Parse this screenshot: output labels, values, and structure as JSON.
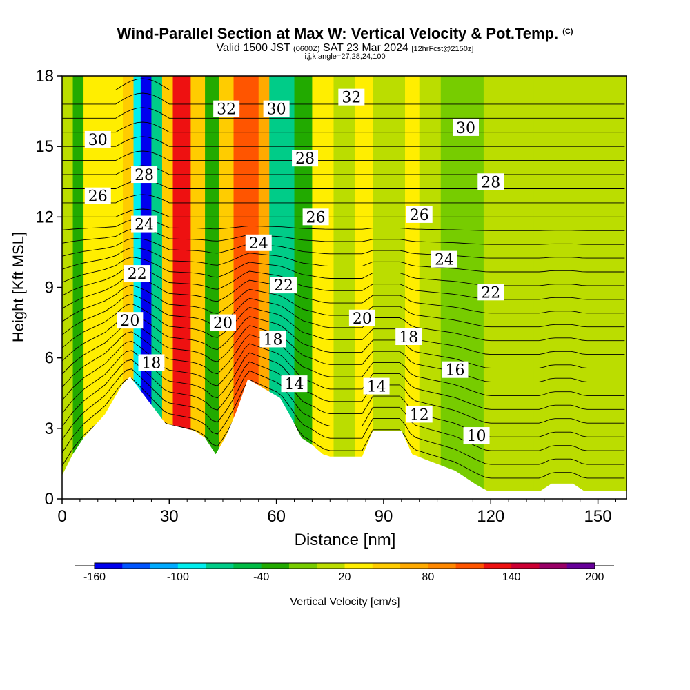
{
  "title": {
    "main": "Wind-Parallel Section at Max W: Vertical Velocity & Pot.Temp.",
    "copyright": "(C)",
    "valid_a": "Valid 1500 JST",
    "valid_utc": "(0600Z)",
    "valid_b": "SAT 23 Mar 2024",
    "fcst": "[12hrFcst@2150z]",
    "indices": "i,j,k,angle=27,28,24,100"
  },
  "colorbar": {
    "title": "Vertical Velocity [cm/s]",
    "colors": [
      "#0000ee",
      "#0055ff",
      "#00aaff",
      "#00eeee",
      "#00cc88",
      "#00bb44",
      "#22aa00",
      "#77cc00",
      "#bbdd00",
      "#ffee00",
      "#ffcc00",
      "#ffaa00",
      "#ff8800",
      "#ff5500",
      "#ee1111",
      "#cc0033",
      "#990066",
      "#660099"
    ],
    "tick_labels": [
      "-160",
      "-100",
      "-40",
      "20",
      "80",
      "140",
      "200"
    ],
    "tick_values": [
      -160,
      -100,
      -40,
      20,
      80,
      140,
      200
    ]
  },
  "chart_data": {
    "type": "heatmap",
    "title": "Wind-Parallel Section at Max W: Vertical Velocity & Pot.Temp.",
    "xlabel": "Distance [nm]",
    "ylabel": "Height [Kft MSL]",
    "xlim": [
      0,
      158
    ],
    "ylim": [
      0,
      18
    ],
    "x_ticks": [
      0,
      30,
      60,
      90,
      120,
      150
    ],
    "y_ticks": [
      0,
      3,
      6,
      9,
      12,
      15,
      18
    ],
    "vertical_velocity_columns": [
      {
        "x": [
          0,
          3
        ],
        "w": 0
      },
      {
        "x": [
          3,
          6
        ],
        "w": -40
      },
      {
        "x": [
          6,
          12
        ],
        "w": 30
      },
      {
        "x": [
          12,
          17
        ],
        "w": 20
      },
      {
        "x": [
          17,
          20
        ],
        "w": 40
      },
      {
        "x": [
          20,
          22
        ],
        "w": -100
      },
      {
        "x": [
          22,
          25
        ],
        "w": -160
      },
      {
        "x": [
          25,
          28
        ],
        "w": -80
      },
      {
        "x": [
          28,
          31
        ],
        "w": 40
      },
      {
        "x": [
          31,
          36
        ],
        "w": 130
      },
      {
        "x": [
          36,
          40
        ],
        "w": 40
      },
      {
        "x": [
          40,
          44
        ],
        "w": -30
      },
      {
        "x": [
          44,
          48
        ],
        "w": 50
      },
      {
        "x": [
          48,
          55
        ],
        "w": 110
      },
      {
        "x": [
          55,
          58
        ],
        "w": 60
      },
      {
        "x": [
          58,
          65
        ],
        "w": -70
      },
      {
        "x": [
          65,
          70
        ],
        "w": -30
      },
      {
        "x": [
          70,
          76
        ],
        "w": 20
      },
      {
        "x": [
          76,
          82
        ],
        "w": 0
      },
      {
        "x": [
          82,
          87
        ],
        "w": 30
      },
      {
        "x": [
          87,
          96
        ],
        "w": 10
      },
      {
        "x": [
          96,
          100
        ],
        "w": 20
      },
      {
        "x": [
          100,
          106
        ],
        "w": 0
      },
      {
        "x": [
          106,
          118
        ],
        "w": -10
      },
      {
        "x": [
          118,
          132
        ],
        "w": 10
      },
      {
        "x": [
          132,
          145
        ],
        "w": 5
      },
      {
        "x": [
          145,
          158
        ],
        "w": 0
      }
    ],
    "terrain": [
      [
        0,
        1
      ],
      [
        3,
        1.9
      ],
      [
        6,
        2.6
      ],
      [
        9,
        3.1
      ],
      [
        12,
        3.6
      ],
      [
        15,
        4.4
      ],
      [
        17,
        4.9
      ],
      [
        19,
        5.2
      ],
      [
        26,
        3.8
      ],
      [
        29,
        3.2
      ],
      [
        37,
        2.9
      ],
      [
        40,
        2.6
      ],
      [
        43,
        1.9
      ],
      [
        46,
        2.7
      ],
      [
        49,
        3.8
      ],
      [
        52,
        5.1
      ],
      [
        61,
        4.3
      ],
      [
        64,
        3.5
      ],
      [
        67,
        2.6
      ],
      [
        70,
        2.3
      ],
      [
        73,
        1.9
      ],
      [
        75,
        1.8
      ],
      [
        79,
        1.8
      ],
      [
        84,
        1.8
      ],
      [
        87,
        2.9
      ],
      [
        95,
        2.9
      ],
      [
        98,
        1.9
      ],
      [
        103,
        1.6
      ],
      [
        110,
        1.2
      ],
      [
        113,
        0.9
      ],
      [
        116,
        0.6
      ],
      [
        119,
        0.35
      ],
      [
        134,
        0.35
      ],
      [
        137,
        0.65
      ],
      [
        143,
        0.65
      ],
      [
        146,
        0.35
      ],
      [
        158,
        0.35
      ]
    ],
    "theta_contour_labels": [
      {
        "value": "30",
        "x": 10,
        "y": 15.3
      },
      {
        "value": "26",
        "x": 10,
        "y": 12.9
      },
      {
        "value": "28",
        "x": 23,
        "y": 13.8
      },
      {
        "value": "24",
        "x": 23,
        "y": 11.7
      },
      {
        "value": "22",
        "x": 21,
        "y": 9.6
      },
      {
        "value": "20",
        "x": 19,
        "y": 7.6
      },
      {
        "value": "18",
        "x": 25,
        "y": 5.8
      },
      {
        "value": "32",
        "x": 46,
        "y": 16.6
      },
      {
        "value": "30",
        "x": 60,
        "y": 16.6
      },
      {
        "value": "24",
        "x": 55,
        "y": 10.9
      },
      {
        "value": "20",
        "x": 45,
        "y": 7.5
      },
      {
        "value": "28",
        "x": 68,
        "y": 14.5
      },
      {
        "value": "26",
        "x": 71,
        "y": 12
      },
      {
        "value": "22",
        "x": 62,
        "y": 9.1
      },
      {
        "value": "18",
        "x": 59,
        "y": 6.8
      },
      {
        "value": "14",
        "x": 65,
        "y": 4.9
      },
      {
        "value": "32",
        "x": 81,
        "y": 17.1
      },
      {
        "value": "20",
        "x": 84,
        "y": 7.7
      },
      {
        "value": "14",
        "x": 88,
        "y": 4.8
      },
      {
        "value": "18",
        "x": 97,
        "y": 6.9
      },
      {
        "value": "26",
        "x": 100,
        "y": 12.1
      },
      {
        "value": "24",
        "x": 107,
        "y": 10.2
      },
      {
        "value": "12",
        "x": 100,
        "y": 3.6
      },
      {
        "value": "16",
        "x": 110,
        "y": 5.5
      },
      {
        "value": "30",
        "x": 113,
        "y": 15.8
      },
      {
        "value": "28",
        "x": 120,
        "y": 13.5
      },
      {
        "value": "22",
        "x": 120,
        "y": 8.8
      },
      {
        "value": "10",
        "x": 116,
        "y": 2.7
      }
    ]
  }
}
